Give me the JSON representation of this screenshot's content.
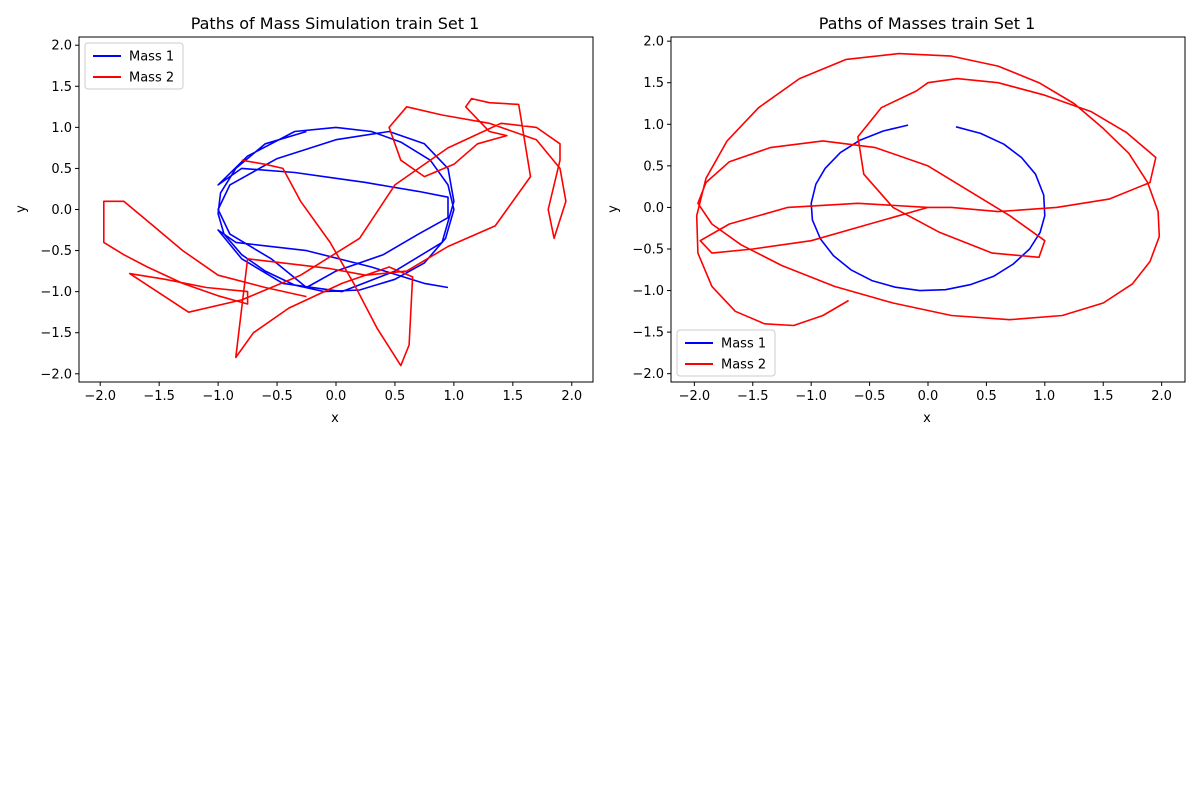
{
  "chart_data": [
    {
      "type": "line",
      "title": "Paths of Mass Simulation train Set 1",
      "xlabel": "x",
      "ylabel": "y",
      "xlim": [
        -2.18,
        2.18
      ],
      "ylim": [
        -2.1,
        2.1
      ],
      "xticks": [
        -2.0,
        -1.5,
        -1.0,
        -0.5,
        0.0,
        0.5,
        1.0,
        1.5,
        2.0
      ],
      "yticks": [
        -2.0,
        -1.5,
        -1.0,
        -0.5,
        0.0,
        0.5,
        1.0,
        1.5,
        2.0
      ],
      "xtick_labels": [
        "−2.0",
        "−1.5",
        "−1.0",
        "−0.5",
        "0.0",
        "0.5",
        "1.0",
        "1.5",
        "2.0"
      ],
      "ytick_labels": [
        "−2.0",
        "−1.5",
        "−1.0",
        "−0.5",
        "0.0",
        "0.5",
        "1.0",
        "1.5",
        "2.0"
      ],
      "grid": false,
      "legend_position": "upper-left",
      "series": [
        {
          "name": "Mass 1",
          "color": "#0000ff",
          "x": [
            -0.25,
            -0.6,
            -0.85,
            -0.98,
            -1.0,
            -0.95,
            -0.8,
            -0.6,
            -0.35,
            -0.1,
            0.2,
            0.5,
            0.75,
            0.93,
            1.0,
            0.95,
            0.8,
            0.55,
            0.3,
            0.0,
            -0.35,
            -0.75,
            -1.0,
            -0.8,
            -0.35,
            0.0,
            0.25,
            0.45,
            0.7,
            0.95,
            0.95,
            0.7,
            0.4,
            0.0,
            -0.25,
            -0.55,
            -0.9,
            -1.0,
            -0.9,
            -0.5,
            0.0,
            0.45,
            0.75,
            0.95,
            1.0,
            0.9,
            0.5,
            0.05,
            -0.45,
            -0.8,
            -1.0,
            -0.85,
            -0.25,
            0.3,
            0.75,
            0.95
          ],
          "y": [
            0.95,
            0.8,
            0.5,
            0.2,
            -0.05,
            -0.3,
            -0.55,
            -0.75,
            -0.92,
            -1.0,
            -0.98,
            -0.85,
            -0.65,
            -0.35,
            0.0,
            0.3,
            0.6,
            0.82,
            0.95,
            1.0,
            0.95,
            0.65,
            0.3,
            0.5,
            0.45,
            0.38,
            0.33,
            0.28,
            0.22,
            0.15,
            -0.1,
            -0.3,
            -0.55,
            -0.75,
            -0.95,
            -0.6,
            -0.3,
            0.0,
            0.3,
            0.62,
            0.85,
            0.95,
            0.8,
            0.5,
            0.1,
            -0.4,
            -0.75,
            -1.0,
            -0.9,
            -0.6,
            -0.25,
            -0.4,
            -0.5,
            -0.7,
            -0.9,
            -0.95
          ]
        },
        {
          "name": "Mass 2",
          "color": "#ff0000",
          "x": [
            -0.25,
            -0.6,
            -1.0,
            -1.3,
            -1.55,
            -1.8,
            -1.97,
            -1.97,
            -1.8,
            -1.6,
            -1.3,
            -1.0,
            -0.75,
            -0.75,
            -1.1,
            -1.45,
            -1.75,
            -1.25,
            -0.8,
            -0.3,
            0.2,
            0.5,
            0.95,
            1.4,
            1.7,
            1.9,
            1.9,
            1.8,
            1.85,
            1.95,
            1.9,
            1.7,
            1.3,
            0.9,
            0.6,
            0.45,
            0.55,
            0.75,
            1.0,
            1.2,
            1.45,
            1.3,
            1.1,
            1.15,
            1.3,
            1.55,
            1.65,
            1.35,
            0.95,
            0.6,
            0.25,
            -0.05,
            -0.45,
            -0.75,
            -0.85,
            -0.7,
            -0.4,
            0.05,
            0.45,
            0.65,
            0.62,
            0.55,
            0.35,
            0.15,
            -0.05,
            -0.3,
            -0.45,
            -0.6,
            -0.8
          ],
          "y": [
            -1.06,
            -0.95,
            -0.8,
            -0.5,
            -0.2,
            0.1,
            0.1,
            -0.4,
            -0.55,
            -0.7,
            -0.9,
            -1.05,
            -1.15,
            -1.0,
            -0.95,
            -0.85,
            -0.78,
            -1.25,
            -1.1,
            -0.8,
            -0.35,
            0.3,
            0.75,
            1.05,
            1.0,
            0.8,
            0.6,
            0.0,
            -0.35,
            0.1,
            0.5,
            0.85,
            1.05,
            1.15,
            1.25,
            1.0,
            0.6,
            0.4,
            0.55,
            0.8,
            0.9,
            0.95,
            1.25,
            1.35,
            1.3,
            1.28,
            0.4,
            -0.2,
            -0.45,
            -0.75,
            -0.8,
            -0.72,
            -0.65,
            -0.6,
            -1.8,
            -1.5,
            -1.2,
            -0.9,
            -0.7,
            -0.82,
            -1.65,
            -1.9,
            -1.45,
            -0.9,
            -0.4,
            0.1,
            0.5,
            0.55,
            0.6
          ]
        }
      ]
    },
    {
      "type": "line",
      "title": "Paths of Masses train Set 1",
      "xlabel": "x",
      "ylabel": "y",
      "xlim": [
        -2.2,
        2.2
      ],
      "ylim": [
        -2.1,
        2.05
      ],
      "xticks": [
        -2.0,
        -1.5,
        -1.0,
        -0.5,
        0.0,
        0.5,
        1.0,
        1.5,
        2.0
      ],
      "yticks": [
        -2.0,
        -1.5,
        -1.0,
        -0.5,
        0.0,
        0.5,
        1.0,
        1.5,
        2.0
      ],
      "xtick_labels": [
        "−2.0",
        "−1.5",
        "−1.0",
        "−0.5",
        "0.0",
        "0.5",
        "1.0",
        "1.5",
        "2.0"
      ],
      "ytick_labels": [
        "−2.0",
        "−1.5",
        "−1.0",
        "−0.5",
        "0.0",
        "0.5",
        "1.0",
        "1.5",
        "2.0"
      ],
      "grid": false,
      "legend_position": "lower-left",
      "series": [
        {
          "name": "Mass 1",
          "color": "#0000ff",
          "x": [
            0.24,
            0.45,
            0.65,
            0.8,
            0.92,
            0.99,
            1.0,
            0.96,
            0.87,
            0.73,
            0.56,
            0.36,
            0.15,
            -0.07,
            -0.28,
            -0.48,
            -0.66,
            -0.81,
            -0.92,
            -0.99,
            -1.0,
            -0.96,
            -0.88,
            -0.75,
            -0.58,
            -0.38,
            -0.17
          ],
          "y": [
            0.97,
            0.89,
            0.76,
            0.6,
            0.4,
            0.15,
            -0.1,
            -0.3,
            -0.5,
            -0.68,
            -0.83,
            -0.93,
            -0.99,
            -1.0,
            -0.96,
            -0.88,
            -0.75,
            -0.58,
            -0.38,
            -0.15,
            0.05,
            0.28,
            0.47,
            0.66,
            0.81,
            0.92,
            0.99
          ]
        },
        {
          "name": "Mass 2",
          "color": "#ff0000",
          "x": [
            -0.68,
            -0.9,
            -1.15,
            -1.4,
            -1.65,
            -1.85,
            -1.97,
            -1.98,
            -1.9,
            -1.72,
            -1.45,
            -1.1,
            -0.7,
            -0.25,
            0.2,
            0.6,
            0.95,
            1.25,
            1.5,
            1.72,
            1.88,
            1.97,
            1.98,
            1.9,
            1.75,
            1.5,
            1.15,
            0.7,
            0.2,
            -0.3,
            -0.8,
            -1.25,
            -1.6,
            -1.85,
            -1.97,
            -1.9,
            -1.7,
            -1.35,
            -0.9,
            -0.45,
            0.0,
            0.35,
            0.7,
            1.0,
            0.95,
            0.55,
            0.1,
            -0.3,
            -0.55,
            -0.6,
            -0.4,
            -0.1,
            0.0,
            0.25,
            0.6,
            1.0,
            1.4,
            1.7,
            1.95,
            1.9,
            1.55,
            1.1,
            0.6,
            0.2,
            0.0,
            -0.5,
            -1.0,
            -1.5,
            -1.85,
            -1.95,
            -1.7,
            -1.2,
            -0.6,
            0.0
          ],
          "y": [
            -1.12,
            -1.3,
            -1.42,
            -1.4,
            -1.25,
            -0.95,
            -0.55,
            -0.1,
            0.35,
            0.8,
            1.2,
            1.55,
            1.78,
            1.85,
            1.82,
            1.7,
            1.5,
            1.25,
            0.95,
            0.65,
            0.3,
            -0.05,
            -0.35,
            -0.65,
            -0.92,
            -1.15,
            -1.3,
            -1.35,
            -1.3,
            -1.15,
            -0.95,
            -0.7,
            -0.45,
            -0.2,
            0.05,
            0.3,
            0.55,
            0.72,
            0.8,
            0.72,
            0.5,
            0.2,
            -0.1,
            -0.4,
            -0.6,
            -0.55,
            -0.3,
            0.0,
            0.4,
            0.85,
            1.2,
            1.4,
            1.5,
            1.55,
            1.5,
            1.35,
            1.15,
            0.9,
            0.6,
            0.3,
            0.1,
            0.0,
            -0.05,
            0.0,
            0.0,
            -0.2,
            -0.4,
            -0.5,
            -0.55,
            -0.4,
            -0.2,
            0.0,
            0.05,
            0.0
          ]
        }
      ]
    }
  ]
}
